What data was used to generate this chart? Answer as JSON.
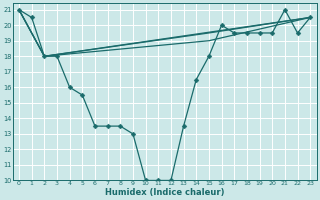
{
  "xlabel": "Humidex (Indice chaleur)",
  "background_color": "#cce8e8",
  "grid_color": "#ffffff",
  "line_color": "#1a6b6b",
  "xlim": [
    -0.5,
    23.5
  ],
  "ylim": [
    10,
    21.4
  ],
  "yticks": [
    10,
    11,
    12,
    13,
    14,
    15,
    16,
    17,
    18,
    19,
    20,
    21
  ],
  "xticks": [
    0,
    1,
    2,
    3,
    4,
    5,
    6,
    7,
    8,
    9,
    10,
    11,
    12,
    13,
    14,
    15,
    16,
    17,
    18,
    19,
    20,
    21,
    22,
    23
  ],
  "line1_x": [
    0,
    1,
    2,
    3,
    4,
    5,
    6,
    7,
    8,
    9,
    10,
    11,
    12,
    13,
    14,
    15,
    16,
    17,
    18,
    19,
    20,
    21,
    22,
    23
  ],
  "line1_y": [
    21,
    20.5,
    18,
    18,
    16,
    15.5,
    13.5,
    13.5,
    13.5,
    13,
    10,
    10,
    10,
    13.5,
    16.5,
    18,
    20,
    19.5,
    19.5,
    19.5,
    19.5,
    21,
    19.5,
    20.5
  ],
  "line2_x": [
    0,
    2,
    23
  ],
  "line2_y": [
    21,
    18,
    20.5
  ],
  "line3_x": [
    0,
    2,
    15,
    23
  ],
  "line3_y": [
    21,
    18,
    19.5,
    20.5
  ],
  "line4_x": [
    0,
    2,
    15,
    23
  ],
  "line4_y": [
    21,
    18,
    19.0,
    20.5
  ]
}
